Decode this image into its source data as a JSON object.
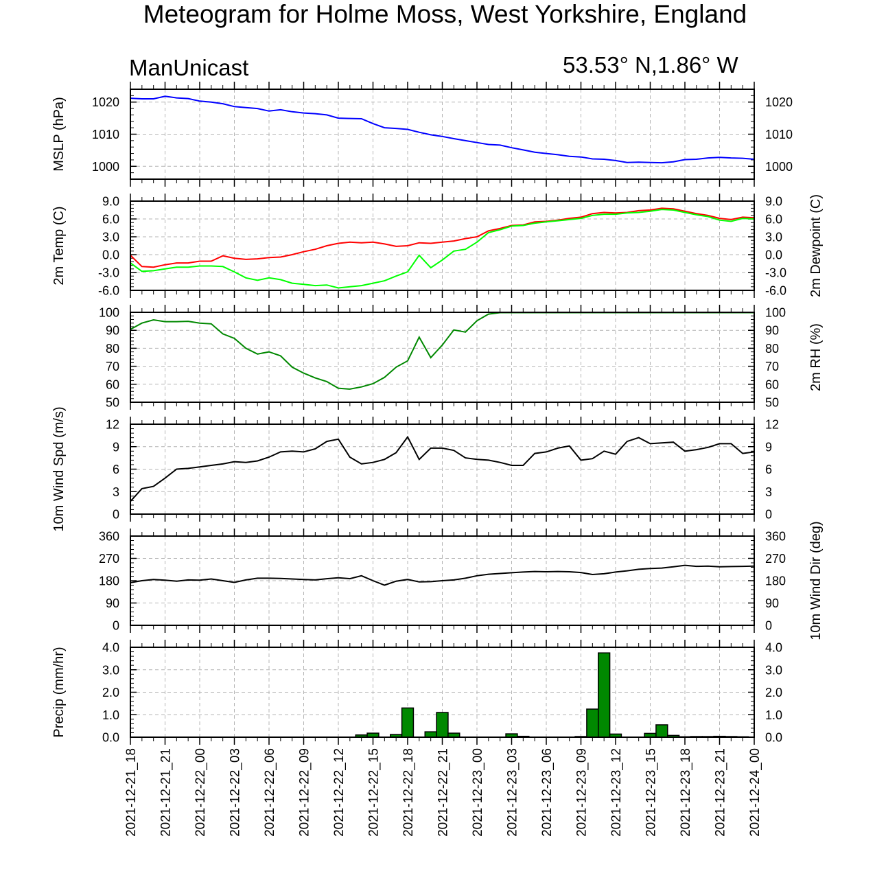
{
  "title": "Meteogram for Holme Moss, West Yorkshire, England",
  "subtitle_left": "ManUnicast",
  "subtitle_right": "53.53° N,1.86° W",
  "x_tick_labels": [
    "2021-12-21_18",
    "2021-12-21_21",
    "2021-12-22_00",
    "2021-12-22_03",
    "2021-12-22_06",
    "2021-12-22_09",
    "2021-12-22_12",
    "2021-12-22_15",
    "2021-12-22_18",
    "2021-12-22_21",
    "2021-12-23_00",
    "2021-12-23_03",
    "2021-12-23_06",
    "2021-12-23_09",
    "2021-12-23_12",
    "2021-12-23_15",
    "2021-12-23_18",
    "2021-12-23_21",
    "2021-12-24_00"
  ],
  "chart_data": [
    {
      "type": "line",
      "ylabel": "MSLP (hPa)",
      "ylim": [
        996,
        1024
      ],
      "yticks": [
        1000,
        1010,
        1020
      ],
      "x_hours_step": 1,
      "series": [
        {
          "color": "#0000ff",
          "values": [
            1021.2,
            1021.0,
            1021.0,
            1021.8,
            1021.3,
            1021.1,
            1020.3,
            1020.0,
            1019.5,
            1018.6,
            1018.3,
            1018.0,
            1017.2,
            1017.6,
            1017.0,
            1016.6,
            1016.4,
            1016.0,
            1015.0,
            1014.9,
            1014.8,
            1013.3,
            1012.0,
            1011.8,
            1011.5,
            1010.6,
            1009.8,
            1009.3,
            1008.6,
            1008.0,
            1007.4,
            1006.8,
            1006.6,
            1005.8,
            1005.1,
            1004.4,
            1004.0,
            1003.6,
            1003.1,
            1002.9,
            1002.3,
            1002.2,
            1001.8,
            1001.2,
            1001.3,
            1001.2,
            1001.1,
            1001.4,
            1002.1,
            1002.2,
            1002.6,
            1002.8,
            1002.6,
            1002.5,
            1002.2
          ]
        }
      ]
    },
    {
      "type": "line",
      "ylabel": "2m Temp (C)",
      "ylabel_right": "2m Dewpoint (C)",
      "ylim": [
        -6,
        9
      ],
      "yticks": [
        -6,
        -3,
        0,
        3,
        6,
        9
      ],
      "ytick_labels": [
        "-6.0",
        "-3.0",
        "0.0",
        "3.0",
        "6.0",
        "9.0"
      ],
      "series": [
        {
          "color": "#ff0000",
          "values": [
            -0.1,
            -2.0,
            -2.1,
            -1.7,
            -1.4,
            -1.4,
            -1.1,
            -1.1,
            -0.2,
            -0.6,
            -0.8,
            -0.7,
            -0.5,
            -0.4,
            0.0,
            0.5,
            0.9,
            1.5,
            1.9,
            2.1,
            2.0,
            2.1,
            1.8,
            1.4,
            1.5,
            2.0,
            1.9,
            2.1,
            2.3,
            2.7,
            3.0,
            4.0,
            4.4,
            4.9,
            5.0,
            5.5,
            5.6,
            5.8,
            6.1,
            6.3,
            6.9,
            7.1,
            7.0,
            7.1,
            7.4,
            7.5,
            7.8,
            7.7,
            7.3,
            6.9,
            6.6,
            6.1,
            5.9,
            6.3,
            6.2
          ]
        },
        {
          "color": "#00ff00",
          "values": [
            -1.4,
            -2.8,
            -2.7,
            -2.4,
            -2.1,
            -2.1,
            -1.9,
            -1.9,
            -2.0,
            -2.9,
            -3.9,
            -4.3,
            -3.9,
            -4.2,
            -4.8,
            -5.0,
            -5.2,
            -5.1,
            -5.6,
            -5.4,
            -5.2,
            -4.8,
            -4.4,
            -3.6,
            -2.9,
            -0.1,
            -2.2,
            -0.9,
            0.6,
            0.9,
            2.1,
            3.7,
            4.2,
            4.8,
            4.9,
            5.3,
            5.5,
            5.7,
            5.9,
            6.1,
            6.6,
            6.8,
            6.8,
            7.0,
            7.1,
            7.3,
            7.6,
            7.5,
            7.1,
            6.7,
            6.4,
            5.8,
            5.6,
            6.1,
            6.0
          ]
        }
      ]
    },
    {
      "type": "line",
      "ylabel_right": "2m RH (%)",
      "ylim": [
        50,
        100
      ],
      "yticks": [
        50,
        60,
        70,
        80,
        90,
        100
      ],
      "series": [
        {
          "color": "#008800",
          "values": [
            90.5,
            94,
            95.8,
            94.8,
            94.8,
            95.0,
            94.0,
            93.6,
            88,
            85.5,
            80,
            76.8,
            78,
            75.8,
            69.5,
            66.2,
            63.5,
            61.5,
            57.8,
            57.3,
            58.5,
            60.3,
            63.8,
            69.5,
            73,
            86.2,
            74.8,
            81.8,
            90.2,
            89,
            95.3,
            99,
            99.8,
            99.8,
            99.8,
            99.8,
            99.8,
            99.8,
            99.8,
            99.8,
            99.8,
            99.8,
            99.8,
            99.8,
            99.8,
            99.8,
            99.8,
            99.8,
            99.8,
            99.8,
            99.8,
            99.8,
            99.8,
            99.8,
            99.8
          ]
        }
      ]
    },
    {
      "type": "line",
      "ylabel": "10m Wind Spd (m/s)",
      "ylim": [
        0,
        12
      ],
      "yticks": [
        0,
        3,
        6,
        9,
        12
      ],
      "series": [
        {
          "color": "#000000",
          "values": [
            1.7,
            3.4,
            3.7,
            4.8,
            6.0,
            6.1,
            6.3,
            6.5,
            6.7,
            7.0,
            6.9,
            7.1,
            7.6,
            8.3,
            8.4,
            8.3,
            8.7,
            9.7,
            10.0,
            7.6,
            6.7,
            6.9,
            7.3,
            8.2,
            10.3,
            7.3,
            8.8,
            8.8,
            8.5,
            7.5,
            7.3,
            7.2,
            6.9,
            6.5,
            6.5,
            8.1,
            8.3,
            8.8,
            9.1,
            7.2,
            7.4,
            8.4,
            8.0,
            9.7,
            10.2,
            9.4,
            9.5,
            9.6,
            8.4,
            8.6,
            8.9,
            9.4,
            9.4,
            8.1,
            8.3
          ]
        }
      ]
    },
    {
      "type": "line",
      "ylabel_right": "10m Wind Dir (deg)",
      "ylim": [
        0,
        360
      ],
      "yticks": [
        0,
        90,
        180,
        270,
        360
      ],
      "series": [
        {
          "color": "#000000",
          "values": [
            172,
            180,
            185,
            182,
            178,
            183,
            182,
            187,
            180,
            173,
            183,
            190,
            190,
            189,
            187,
            185,
            183,
            188,
            192,
            188,
            200,
            180,
            162,
            178,
            185,
            175,
            176,
            180,
            183,
            190,
            200,
            206,
            209,
            212,
            215,
            217,
            216,
            217,
            216,
            213,
            205,
            208,
            215,
            220,
            226,
            229,
            231,
            236,
            242,
            238,
            239,
            236,
            237,
            238,
            239
          ]
        }
      ]
    },
    {
      "type": "bar",
      "ylabel": "Precip (mm/hr)",
      "ylim": [
        0,
        4
      ],
      "yticks": [
        0,
        1,
        2,
        3,
        4
      ],
      "ytick_labels": [
        "0.0",
        "1.0",
        "2.0",
        "3.0",
        "4.0"
      ],
      "bar_color": "#008800",
      "bars": [
        {
          "hour": 20,
          "value": 0.1
        },
        {
          "hour": 21,
          "value": 0.18
        },
        {
          "hour": 23,
          "value": 0.12
        },
        {
          "hour": 24,
          "value": 1.3
        },
        {
          "hour": 26,
          "value": 0.24
        },
        {
          "hour": 27,
          "value": 1.1
        },
        {
          "hour": 28,
          "value": 0.18
        },
        {
          "hour": 33,
          "value": 0.15
        },
        {
          "hour": 34,
          "value": 0.04
        },
        {
          "hour": 39,
          "value": 0.03
        },
        {
          "hour": 40,
          "value": 1.25
        },
        {
          "hour": 41,
          "value": 3.75
        },
        {
          "hour": 42,
          "value": 0.14
        },
        {
          "hour": 45,
          "value": 0.17
        },
        {
          "hour": 46,
          "value": 0.55
        },
        {
          "hour": 47,
          "value": 0.08
        },
        {
          "hour": 48,
          "value": 0.02
        },
        {
          "hour": 49,
          "value": 0.03
        },
        {
          "hour": 50,
          "value": 0.03
        },
        {
          "hour": 51,
          "value": 0.04
        },
        {
          "hour": 52,
          "value": 0.03
        },
        {
          "hour": 53,
          "value": 0.02
        }
      ]
    }
  ]
}
